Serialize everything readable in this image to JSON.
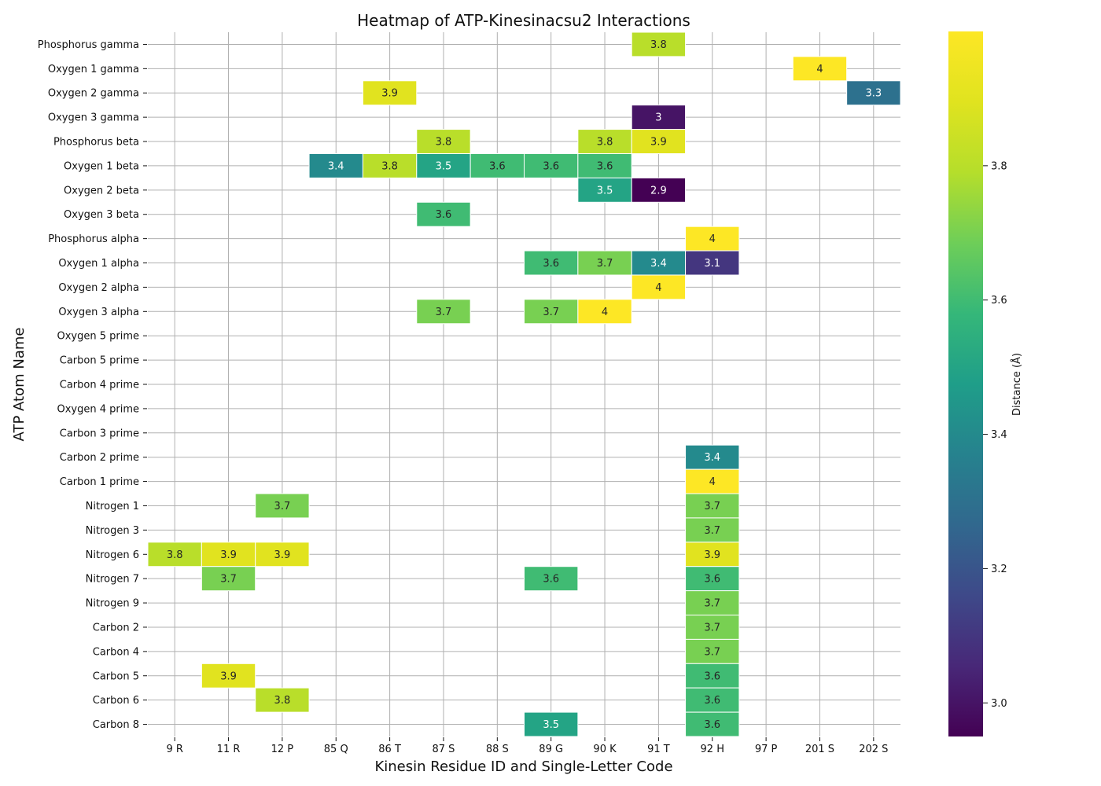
{
  "chart_data": {
    "type": "heatmap",
    "title": "Heatmap of ATP-Kinesinacsu2 Interactions",
    "xlabel": "Kinesin Residue ID and Single-Letter Code",
    "ylabel": "ATP Atom Name",
    "colorbar_label": "Distance (Å)",
    "colormap": "viridis",
    "color_range": [
      2.95,
      4.0
    ],
    "colorbar_ticks": [
      3.0,
      3.2,
      3.4,
      3.6,
      3.8
    ],
    "grid": true,
    "x_categories": [
      "9 R",
      "11 R",
      "12 P",
      "85 Q",
      "86 T",
      "87 S",
      "88 S",
      "89 G",
      "90 K",
      "91 T",
      "92 H",
      "97 P",
      "201 S",
      "202 S"
    ],
    "y_categories": [
      "Phosphorus gamma",
      "Oxygen 1 gamma",
      "Oxygen 2 gamma",
      "Oxygen 3 gamma",
      "Phosphorus beta",
      "Oxygen 1 beta",
      "Oxygen 2 beta",
      "Oxygen 3 beta",
      "Phosphorus alpha",
      "Oxygen 1 alpha",
      "Oxygen 2 alpha",
      "Oxygen 3 alpha",
      "Oxygen 5 prime",
      "Carbon 5 prime",
      "Carbon 4 prime",
      "Oxygen 4 prime",
      "Carbon 3 prime",
      "Carbon 2 prime",
      "Carbon 1 prime",
      "Nitrogen 1",
      "Nitrogen 3",
      "Nitrogen 6",
      "Nitrogen 7",
      "Nitrogen 9",
      "Carbon 2",
      "Carbon 4",
      "Carbon 5",
      "Carbon 6",
      "Carbon 8"
    ],
    "cells": [
      {
        "y": "Phosphorus gamma",
        "x": "91 T",
        "value": 3.8,
        "label": "3.8"
      },
      {
        "y": "Oxygen 1 gamma",
        "x": "201 S",
        "value": 4.0,
        "label": "4"
      },
      {
        "y": "Oxygen 2 gamma",
        "x": "86 T",
        "value": 3.9,
        "label": "3.9"
      },
      {
        "y": "Oxygen 2 gamma",
        "x": "202 S",
        "value": 3.3,
        "label": "3.3"
      },
      {
        "y": "Oxygen 3 gamma",
        "x": "91 T",
        "value": 3.0,
        "label": "3"
      },
      {
        "y": "Phosphorus beta",
        "x": "87 S",
        "value": 3.8,
        "label": "3.8"
      },
      {
        "y": "Phosphorus beta",
        "x": "90 K",
        "value": 3.8,
        "label": "3.8"
      },
      {
        "y": "Phosphorus beta",
        "x": "91 T",
        "value": 3.9,
        "label": "3.9"
      },
      {
        "y": "Oxygen 1 beta",
        "x": "85 Q",
        "value": 3.4,
        "label": "3.4"
      },
      {
        "y": "Oxygen 1 beta",
        "x": "86 T",
        "value": 3.8,
        "label": "3.8"
      },
      {
        "y": "Oxygen 1 beta",
        "x": "87 S",
        "value": 3.5,
        "label": "3.5"
      },
      {
        "y": "Oxygen 1 beta",
        "x": "88 S",
        "value": 3.6,
        "label": "3.6"
      },
      {
        "y": "Oxygen 1 beta",
        "x": "89 G",
        "value": 3.6,
        "label": "3.6"
      },
      {
        "y": "Oxygen 1 beta",
        "x": "90 K",
        "value": 3.6,
        "label": "3.6"
      },
      {
        "y": "Oxygen 2 beta",
        "x": "90 K",
        "value": 3.5,
        "label": "3.5"
      },
      {
        "y": "Oxygen 2 beta",
        "x": "91 T",
        "value": 2.9,
        "label": "2.9"
      },
      {
        "y": "Oxygen 3 beta",
        "x": "87 S",
        "value": 3.6,
        "label": "3.6"
      },
      {
        "y": "Phosphorus alpha",
        "x": "92 H",
        "value": 4.0,
        "label": "4"
      },
      {
        "y": "Oxygen 1 alpha",
        "x": "89 G",
        "value": 3.6,
        "label": "3.6"
      },
      {
        "y": "Oxygen 1 alpha",
        "x": "90 K",
        "value": 3.7,
        "label": "3.7"
      },
      {
        "y": "Oxygen 1 alpha",
        "x": "91 T",
        "value": 3.4,
        "label": "3.4"
      },
      {
        "y": "Oxygen 1 alpha",
        "x": "92 H",
        "value": 3.1,
        "label": "3.1"
      },
      {
        "y": "Oxygen 2 alpha",
        "x": "91 T",
        "value": 4.0,
        "label": "4"
      },
      {
        "y": "Oxygen 3 alpha",
        "x": "87 S",
        "value": 3.7,
        "label": "3.7"
      },
      {
        "y": "Oxygen 3 alpha",
        "x": "89 G",
        "value": 3.7,
        "label": "3.7"
      },
      {
        "y": "Oxygen 3 alpha",
        "x": "90 K",
        "value": 4.0,
        "label": "4"
      },
      {
        "y": "Carbon 2 prime",
        "x": "92 H",
        "value": 3.4,
        "label": "3.4"
      },
      {
        "y": "Carbon 1 prime",
        "x": "92 H",
        "value": 4.0,
        "label": "4"
      },
      {
        "y": "Nitrogen 1",
        "x": "12 P",
        "value": 3.7,
        "label": "3.7"
      },
      {
        "y": "Nitrogen 1",
        "x": "92 H",
        "value": 3.7,
        "label": "3.7"
      },
      {
        "y": "Nitrogen 3",
        "x": "92 H",
        "value": 3.7,
        "label": "3.7"
      },
      {
        "y": "Nitrogen 6",
        "x": "9 R",
        "value": 3.8,
        "label": "3.8"
      },
      {
        "y": "Nitrogen 6",
        "x": "11 R",
        "value": 3.9,
        "label": "3.9"
      },
      {
        "y": "Nitrogen 6",
        "x": "12 P",
        "value": 3.9,
        "label": "3.9"
      },
      {
        "y": "Nitrogen 6",
        "x": "92 H",
        "value": 3.9,
        "label": "3.9"
      },
      {
        "y": "Nitrogen 7",
        "x": "11 R",
        "value": 3.7,
        "label": "3.7"
      },
      {
        "y": "Nitrogen 7",
        "x": "89 G",
        "value": 3.6,
        "label": "3.6"
      },
      {
        "y": "Nitrogen 7",
        "x": "92 H",
        "value": 3.6,
        "label": "3.6"
      },
      {
        "y": "Nitrogen 9",
        "x": "92 H",
        "value": 3.7,
        "label": "3.7"
      },
      {
        "y": "Carbon 2",
        "x": "92 H",
        "value": 3.7,
        "label": "3.7"
      },
      {
        "y": "Carbon 4",
        "x": "92 H",
        "value": 3.7,
        "label": "3.7"
      },
      {
        "y": "Carbon 5",
        "x": "11 R",
        "value": 3.9,
        "label": "3.9"
      },
      {
        "y": "Carbon 5",
        "x": "92 H",
        "value": 3.6,
        "label": "3.6"
      },
      {
        "y": "Carbon 6",
        "x": "12 P",
        "value": 3.8,
        "label": "3.8"
      },
      {
        "y": "Carbon 6",
        "x": "92 H",
        "value": 3.6,
        "label": "3.6"
      },
      {
        "y": "Carbon 8",
        "x": "89 G",
        "value": 3.5,
        "label": "3.5"
      },
      {
        "y": "Carbon 8",
        "x": "92 H",
        "value": 3.6,
        "label": "3.6"
      }
    ]
  }
}
